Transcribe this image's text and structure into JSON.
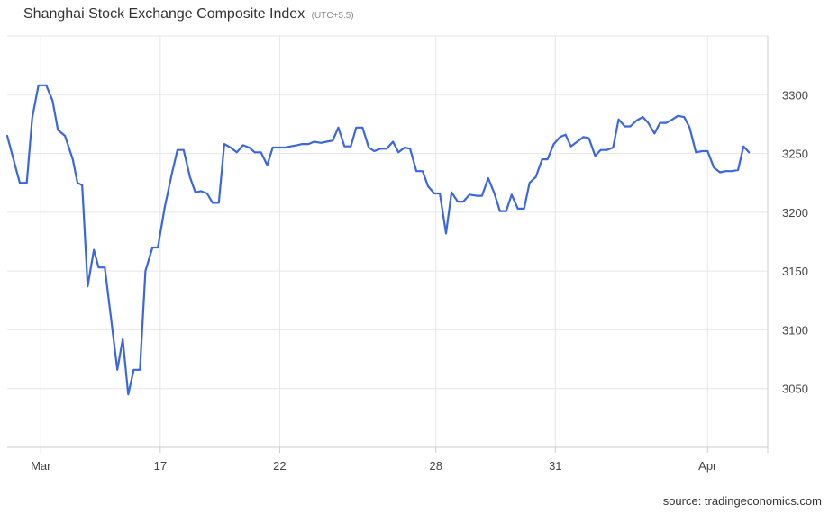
{
  "header": {
    "title": "Shanghai Stock Exchange Composite Index",
    "subtitle": "(UTC+5.5)"
  },
  "footer": {
    "source": "source: tradingeconomics.com"
  },
  "colors": {
    "line": "#3a66e0",
    "grid": "#e6e6e6",
    "axis": "#cccccc",
    "text": "#444444"
  },
  "chart_data": {
    "type": "line",
    "title": "Shanghai Stock Exchange Composite Index",
    "subtitle": "(UTC+5.5)",
    "xlabel": "",
    "ylabel": "",
    "y_axis_side": "right",
    "grid": true,
    "ylim": [
      3000,
      3350
    ],
    "yticks": [
      3050,
      3100,
      3150,
      3200,
      3250,
      3300
    ],
    "xticks": [
      {
        "label": "Mar",
        "x": 4.3
      },
      {
        "label": "17",
        "x": 19.6
      },
      {
        "label": "22",
        "x": 34.9
      },
      {
        "label": "28",
        "x": 54.9
      },
      {
        "label": "31",
        "x": 70.2
      },
      {
        "label": "Apr",
        "x": 89.7
      }
    ],
    "xlim": [
      0,
      97.4
    ],
    "series": [
      {
        "points": [
          [
            0.0,
            3265
          ],
          [
            1.6,
            3225
          ],
          [
            2.5,
            3225
          ],
          [
            3.2,
            3280
          ],
          [
            4.0,
            3308
          ],
          [
            5.0,
            3308
          ],
          [
            5.8,
            3295
          ],
          [
            6.5,
            3270
          ],
          [
            7.4,
            3265
          ],
          [
            8.4,
            3245
          ],
          [
            9.0,
            3225
          ],
          [
            9.6,
            3223
          ],
          [
            10.3,
            3137
          ],
          [
            11.1,
            3168
          ],
          [
            11.7,
            3153
          ],
          [
            12.5,
            3153
          ],
          [
            13.3,
            3110
          ],
          [
            14.1,
            3066
          ],
          [
            14.8,
            3092
          ],
          [
            15.5,
            3045
          ],
          [
            16.2,
            3066
          ],
          [
            17.0,
            3066
          ],
          [
            17.7,
            3150
          ],
          [
            18.6,
            3170
          ],
          [
            19.3,
            3170
          ],
          [
            20.2,
            3205
          ],
          [
            21.1,
            3233
          ],
          [
            21.8,
            3253
          ],
          [
            22.6,
            3253
          ],
          [
            23.4,
            3230
          ],
          [
            24.1,
            3217
          ],
          [
            24.8,
            3218
          ],
          [
            25.6,
            3216
          ],
          [
            26.3,
            3208
          ],
          [
            27.1,
            3208
          ],
          [
            27.8,
            3258
          ],
          [
            28.6,
            3255
          ],
          [
            29.4,
            3251
          ],
          [
            30.2,
            3257
          ],
          [
            31.0,
            3255
          ],
          [
            31.7,
            3251
          ],
          [
            32.5,
            3251
          ],
          [
            33.3,
            3240
          ],
          [
            34.0,
            3255
          ],
          [
            34.8,
            3255
          ],
          [
            35.6,
            3255
          ],
          [
            36.3,
            3256
          ],
          [
            37.1,
            3257
          ],
          [
            37.8,
            3258
          ],
          [
            38.6,
            3258
          ],
          [
            39.3,
            3260
          ],
          [
            40.2,
            3259
          ],
          [
            40.9,
            3260
          ],
          [
            41.7,
            3261
          ],
          [
            42.4,
            3272
          ],
          [
            43.2,
            3256
          ],
          [
            44.0,
            3256
          ],
          [
            44.7,
            3272
          ],
          [
            45.5,
            3272
          ],
          [
            46.3,
            3255
          ],
          [
            47.0,
            3252
          ],
          [
            47.8,
            3254
          ],
          [
            48.6,
            3254
          ],
          [
            49.4,
            3260
          ],
          [
            50.1,
            3251
          ],
          [
            50.9,
            3255
          ],
          [
            51.6,
            3254
          ],
          [
            52.4,
            3235
          ],
          [
            53.2,
            3235
          ],
          [
            53.9,
            3222
          ],
          [
            54.7,
            3216
          ],
          [
            55.4,
            3216
          ],
          [
            56.2,
            3182
          ],
          [
            56.9,
            3217
          ],
          [
            57.7,
            3209
          ],
          [
            58.4,
            3209
          ],
          [
            59.2,
            3215
          ],
          [
            60.1,
            3214
          ],
          [
            60.8,
            3214
          ],
          [
            61.6,
            3229
          ],
          [
            62.4,
            3216
          ],
          [
            63.1,
            3201
          ],
          [
            63.9,
            3201
          ],
          [
            64.6,
            3215
          ],
          [
            65.4,
            3203
          ],
          [
            66.2,
            3203
          ],
          [
            66.9,
            3225
          ],
          [
            67.7,
            3230
          ],
          [
            68.5,
            3245
          ],
          [
            69.2,
            3245
          ],
          [
            70.0,
            3258
          ],
          [
            70.8,
            3264
          ],
          [
            71.5,
            3266
          ],
          [
            72.2,
            3256
          ],
          [
            73.0,
            3260
          ],
          [
            73.8,
            3264
          ],
          [
            74.5,
            3263
          ],
          [
            75.3,
            3248
          ],
          [
            76.0,
            3253
          ],
          [
            76.8,
            3253
          ],
          [
            77.6,
            3255
          ],
          [
            78.3,
            3279
          ],
          [
            79.1,
            3273
          ],
          [
            79.8,
            3273
          ],
          [
            80.6,
            3278
          ],
          [
            81.4,
            3281
          ],
          [
            82.1,
            3276
          ],
          [
            82.9,
            3267
          ],
          [
            83.6,
            3276
          ],
          [
            84.4,
            3276
          ],
          [
            85.2,
            3279
          ],
          [
            85.9,
            3282
          ],
          [
            86.7,
            3281
          ],
          [
            87.4,
            3272
          ],
          [
            88.2,
            3251
          ],
          [
            89.0,
            3252
          ],
          [
            89.7,
            3252
          ],
          [
            90.5,
            3238
          ],
          [
            91.3,
            3234
          ],
          [
            92.0,
            3235
          ],
          [
            92.8,
            3235
          ],
          [
            93.6,
            3236
          ],
          [
            94.3,
            3256
          ],
          [
            95.0,
            3251
          ]
        ]
      }
    ]
  }
}
